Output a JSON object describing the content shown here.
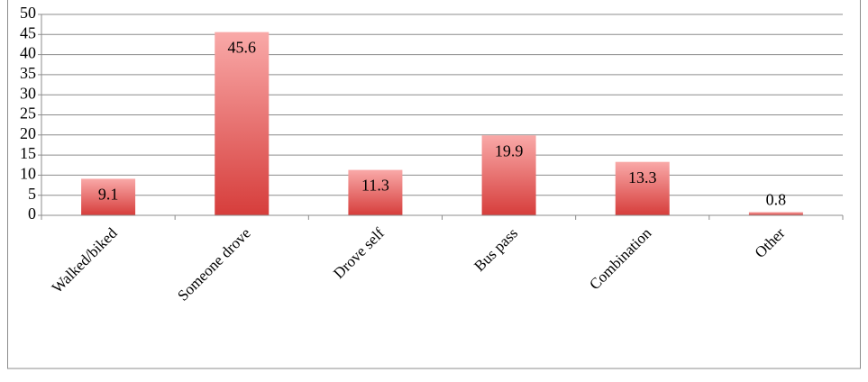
{
  "chart_data": {
    "type": "bar",
    "categories": [
      "Walked/biked",
      "Someone drove",
      "Drove self",
      "Bus pass",
      "Combination",
      "Other"
    ],
    "values": [
      9.1,
      45.6,
      11.3,
      19.9,
      13.3,
      0.8
    ],
    "color": [
      "#f9a9a8",
      "#d63d3b"
    ],
    "ylim": [
      0,
      50
    ],
    "yticks": [
      0,
      5,
      10,
      15,
      20,
      25,
      30,
      35,
      40,
      45,
      50
    ],
    "grid": true
  }
}
